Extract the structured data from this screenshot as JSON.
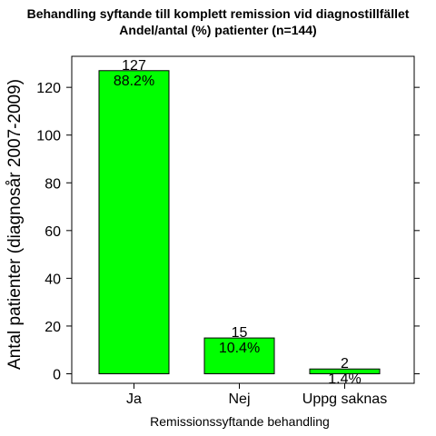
{
  "chart_data": {
    "type": "bar",
    "title": "Behandling syftande till komplett remission vid diagnostillfället",
    "subtitle": "Andel/antal (%) patienter (n=144)",
    "xlabel": "Remissionssyftande behandling",
    "ylabel": "Antal patienter (diagnosår 2007-2009)",
    "categories": [
      "Ja",
      "Nej",
      "Uppg saknas"
    ],
    "values": [
      127,
      15,
      2
    ],
    "count_labels": [
      "127",
      "15",
      "2"
    ],
    "percent_labels": [
      "88.2%",
      "10.4%",
      "1.4%"
    ],
    "ylim": [
      -4,
      133
    ],
    "yticks": [
      0,
      20,
      40,
      60,
      80,
      100,
      120
    ],
    "ytick_labels": [
      "0",
      "20",
      "40",
      "60",
      "80",
      "100",
      "120"
    ],
    "grid": false,
    "bar_color": "#00FF00",
    "bar_edge_color": "#000000"
  }
}
